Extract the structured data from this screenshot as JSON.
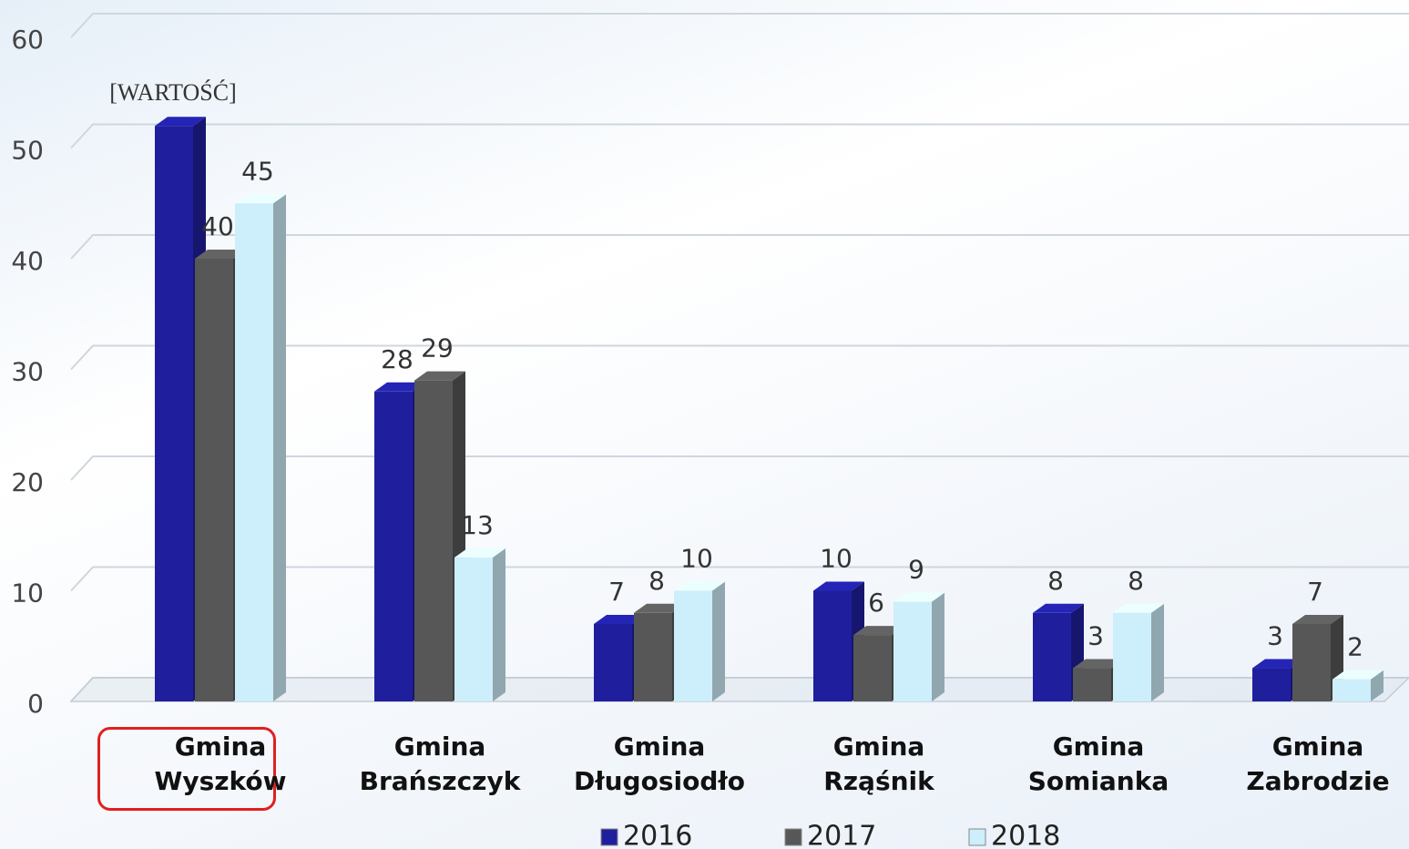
{
  "chart_data": {
    "type": "bar",
    "categories": [
      "Gmina Wyszków",
      "Gmina Brańszczyk",
      "Gmina Długosiodło",
      "Gmina Rząśnik",
      "Gmina Somianka",
      "Gmina Zabrodzie"
    ],
    "series": [
      {
        "name": "2016",
        "color": "#1f1f9e",
        "values": [
          52,
          28,
          7,
          10,
          8,
          3
        ],
        "value_labels": [
          "[WARTOŚĆ]",
          "28",
          "7",
          "10",
          "8",
          "3"
        ]
      },
      {
        "name": "2017",
        "color": "#575757",
        "values": [
          40,
          29,
          8,
          6,
          3,
          7
        ]
      },
      {
        "name": "2018",
        "color": "#cdeefb",
        "values": [
          45,
          13,
          10,
          9,
          8,
          2
        ]
      }
    ],
    "ylim": [
      0,
      60
    ],
    "yticks": [
      0,
      10,
      20,
      30,
      40,
      50,
      60
    ],
    "grid": true,
    "legend": "bottom"
  }
}
